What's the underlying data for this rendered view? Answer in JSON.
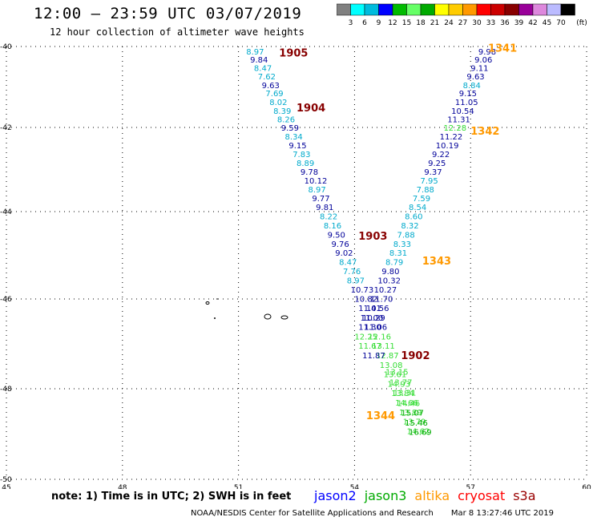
{
  "header": {
    "title": "12:00 – 23:59 UTC 03/07/2019",
    "subtitle": "12 hour collection of altimeter wave heights"
  },
  "colorbar": {
    "unit": "(ft)",
    "labels": [
      "3",
      "6",
      "9",
      "12",
      "15",
      "18",
      "21",
      "24",
      "27",
      "30",
      "33",
      "36",
      "39",
      "42",
      "45",
      "70"
    ],
    "colors": [
      "#808080",
      "#00ffff",
      "#00bbdd",
      "#0000ff",
      "#00bb00",
      "#66ff66",
      "#00aa00",
      "#ffff00",
      "#ffcc00",
      "#ff9900",
      "#ff0000",
      "#cc0000",
      "#880000",
      "#990099",
      "#dd88dd",
      "#bbbbff",
      "#000000"
    ]
  },
  "axes": {
    "lat_labels": [
      "-40",
      "-42",
      "-44",
      "-46",
      "-48",
      "-50"
    ],
    "lon_labels": [
      "45",
      "48",
      "51",
      "54",
      "57",
      "60"
    ]
  },
  "pass_colors": {
    "lightblue": "#00aacc",
    "darkblue": "#000099",
    "lightgreen": "#33dd33",
    "green": "#00aa00"
  },
  "tracks": [
    {
      "lon": 51.2,
      "lat": -40.12,
      "text": "8.97",
      "c": "lightblue"
    },
    {
      "lon": 51.3,
      "lat": -40.32,
      "text": "9.84",
      "c": "darkblue"
    },
    {
      "lon": 51.4,
      "lat": -40.52,
      "text": "8.47",
      "c": "lightblue"
    },
    {
      "lon": 51.5,
      "lat": -40.73,
      "text": "7.62",
      "c": "lightblue"
    },
    {
      "lon": 51.6,
      "lat": -40.95,
      "text": "9.63",
      "c": "darkblue"
    },
    {
      "lon": 51.7,
      "lat": -41.15,
      "text": "7.69",
      "c": "lightblue"
    },
    {
      "lon": 51.8,
      "lat": -41.37,
      "text": "8.02",
      "c": "lightblue"
    },
    {
      "lon": 51.9,
      "lat": -41.58,
      "text": "8.39",
      "c": "lightblue"
    },
    {
      "lon": 52.0,
      "lat": -41.79,
      "text": "8.26",
      "c": "lightblue"
    },
    {
      "lon": 52.1,
      "lat": -42.0,
      "text": "9.59",
      "c": "darkblue"
    },
    {
      "lon": 52.2,
      "lat": -42.21,
      "text": "8.34",
      "c": "lightblue"
    },
    {
      "lon": 52.3,
      "lat": -42.42,
      "text": "9.15",
      "c": "darkblue"
    },
    {
      "lon": 52.4,
      "lat": -42.63,
      "text": "7.83",
      "c": "lightblue"
    },
    {
      "lon": 52.5,
      "lat": -42.84,
      "text": "8.89",
      "c": "lightblue"
    },
    {
      "lon": 52.6,
      "lat": -43.05,
      "text": "9.78",
      "c": "darkblue"
    },
    {
      "lon": 52.7,
      "lat": -43.26,
      "text": "10.12",
      "c": "darkblue"
    },
    {
      "lon": 52.8,
      "lat": -43.47,
      "text": "8.97",
      "c": "lightblue"
    },
    {
      "lon": 52.9,
      "lat": -43.68,
      "text": "9.77",
      "c": "darkblue"
    },
    {
      "lon": 53.0,
      "lat": -43.89,
      "text": "9.81",
      "c": "darkblue"
    },
    {
      "lon": 53.1,
      "lat": -44.1,
      "text": "8.22",
      "c": "lightblue"
    },
    {
      "lon": 53.2,
      "lat": -44.31,
      "text": "8.16",
      "c": "lightblue"
    },
    {
      "lon": 53.3,
      "lat": -44.52,
      "text": "9.50",
      "c": "darkblue"
    },
    {
      "lon": 53.4,
      "lat": -44.73,
      "text": "9.76",
      "c": "darkblue"
    },
    {
      "lon": 53.5,
      "lat": -44.94,
      "text": "9.02",
      "c": "darkblue"
    },
    {
      "lon": 53.6,
      "lat": -45.15,
      "text": "8.47",
      "c": "lightblue"
    },
    {
      "lon": 53.7,
      "lat": -45.36,
      "text": "7.76",
      "c": "lightblue"
    },
    {
      "lon": 53.8,
      "lat": -45.57,
      "text": "8.97",
      "c": "lightblue"
    },
    {
      "lon": 53.9,
      "lat": -45.78,
      "text": "10.73",
      "c": "darkblue"
    },
    {
      "lon": 54.0,
      "lat": -45.99,
      "text": "10.82",
      "c": "darkblue"
    },
    {
      "lon": 54.1,
      "lat": -46.2,
      "text": "11.41",
      "c": "darkblue"
    },
    {
      "lon": 54.15,
      "lat": -46.41,
      "text": "11.00",
      "c": "darkblue"
    },
    {
      "lon": 54.25,
      "lat": -46.62,
      "text": "11.06",
      "c": "darkblue"
    },
    {
      "lon": 54.35,
      "lat": -46.83,
      "text": "12.16",
      "c": "lightgreen"
    },
    {
      "lon": 54.45,
      "lat": -47.04,
      "text": "13.11",
      "c": "lightgreen"
    },
    {
      "lon": 54.55,
      "lat": -47.25,
      "text": "12.87",
      "c": "lightgreen"
    },
    {
      "lon": 54.65,
      "lat": -47.46,
      "text": "13.08",
      "c": "lightgreen"
    },
    {
      "lon": 54.75,
      "lat": -47.67,
      "text": "13.61",
      "c": "lightgreen"
    },
    {
      "lon": 54.85,
      "lat": -47.88,
      "text": "14.93",
      "c": "lightgreen"
    },
    {
      "lon": 54.95,
      "lat": -48.09,
      "text": "13.84",
      "c": "lightgreen"
    },
    {
      "lon": 55.05,
      "lat": -48.3,
      "text": "14.66",
      "c": "lightgreen"
    },
    {
      "lon": 55.15,
      "lat": -48.51,
      "text": "13.89",
      "c": "lightgreen"
    },
    {
      "lon": 55.25,
      "lat": -48.72,
      "text": "13.79",
      "c": "lightgreen"
    },
    {
      "lon": 55.35,
      "lat": -48.93,
      "text": "14.62",
      "c": "lightgreen"
    },
    {
      "lon": 57.2,
      "lat": -40.12,
      "text": "9.98",
      "c": "darkblue"
    },
    {
      "lon": 57.1,
      "lat": -40.32,
      "text": "9.06",
      "c": "darkblue"
    },
    {
      "lon": 57.0,
      "lat": -40.52,
      "text": "9.11",
      "c": "darkblue"
    },
    {
      "lon": 56.9,
      "lat": -40.73,
      "text": "9.63",
      "c": "darkblue"
    },
    {
      "lon": 56.8,
      "lat": -40.95,
      "text": "8.84",
      "c": "lightblue"
    },
    {
      "lon": 56.7,
      "lat": -41.15,
      "text": "9.15",
      "c": "darkblue"
    },
    {
      "lon": 56.6,
      "lat": -41.37,
      "text": "11.05",
      "c": "darkblue"
    },
    {
      "lon": 56.5,
      "lat": -41.58,
      "text": "10.54",
      "c": "darkblue"
    },
    {
      "lon": 56.4,
      "lat": -41.79,
      "text": "11.31",
      "c": "darkblue"
    },
    {
      "lon": 56.3,
      "lat": -42.0,
      "text": "12.28",
      "c": "lightgreen"
    },
    {
      "lon": 56.2,
      "lat": -42.21,
      "text": "11.22",
      "c": "darkblue"
    },
    {
      "lon": 56.1,
      "lat": -42.42,
      "text": "10.19",
      "c": "darkblue"
    },
    {
      "lon": 56.0,
      "lat": -42.63,
      "text": "9.22",
      "c": "darkblue"
    },
    {
      "lon": 55.9,
      "lat": -42.84,
      "text": "9.25",
      "c": "darkblue"
    },
    {
      "lon": 55.8,
      "lat": -43.05,
      "text": "9.37",
      "c": "darkblue"
    },
    {
      "lon": 55.7,
      "lat": -43.26,
      "text": "7.95",
      "c": "lightblue"
    },
    {
      "lon": 55.6,
      "lat": -43.47,
      "text": "7.88",
      "c": "lightblue"
    },
    {
      "lon": 55.5,
      "lat": -43.68,
      "text": "7.59",
      "c": "lightblue"
    },
    {
      "lon": 55.4,
      "lat": -43.89,
      "text": "8.54",
      "c": "lightblue"
    },
    {
      "lon": 55.3,
      "lat": -44.1,
      "text": "8.60",
      "c": "lightblue"
    },
    {
      "lon": 55.2,
      "lat": -44.31,
      "text": "8.32",
      "c": "lightblue"
    },
    {
      "lon": 55.1,
      "lat": -44.52,
      "text": "7.88",
      "c": "lightblue"
    },
    {
      "lon": 55.0,
      "lat": -44.73,
      "text": "8.33",
      "c": "lightblue"
    },
    {
      "lon": 54.9,
      "lat": -44.94,
      "text": "8.31",
      "c": "lightblue"
    },
    {
      "lon": 54.8,
      "lat": -45.15,
      "text": "8.79",
      "c": "lightblue"
    },
    {
      "lon": 54.7,
      "lat": -45.36,
      "text": "9.80",
      "c": "darkblue"
    },
    {
      "lon": 54.6,
      "lat": -45.57,
      "text": "10.32",
      "c": "darkblue"
    },
    {
      "lon": 54.5,
      "lat": -45.78,
      "text": "10.27",
      "c": "darkblue"
    },
    {
      "lon": 54.4,
      "lat": -45.99,
      "text": "11.70",
      "c": "darkblue"
    },
    {
      "lon": 54.3,
      "lat": -46.2,
      "text": "10.56",
      "c": "darkblue"
    },
    {
      "lon": 54.2,
      "lat": -46.41,
      "text": "10.29",
      "c": "darkblue"
    },
    {
      "lon": 54.1,
      "lat": -46.62,
      "text": "11.30",
      "c": "darkblue"
    },
    {
      "lon": 54.0,
      "lat": -46.83,
      "text": "12.25",
      "c": "lightgreen"
    },
    {
      "lon": 54.1,
      "lat": -47.04,
      "text": "11.67",
      "c": "lightgreen"
    },
    {
      "lon": 54.2,
      "lat": -47.25,
      "text": "11.87",
      "c": "darkblue"
    },
    {
      "lon": 54.8,
      "lat": -47.62,
      "text": "13.15",
      "c": "lightgreen"
    },
    {
      "lon": 54.9,
      "lat": -47.85,
      "text": "13.77",
      "c": "lightgreen"
    },
    {
      "lon": 55.0,
      "lat": -48.08,
      "text": "13.31",
      "c": "lightgreen"
    },
    {
      "lon": 55.1,
      "lat": -48.31,
      "text": "14.46",
      "c": "lightgreen"
    },
    {
      "lon": 55.2,
      "lat": -48.52,
      "text": "15.07",
      "c": "green"
    },
    {
      "lon": 55.3,
      "lat": -48.74,
      "text": "15.46",
      "c": "green"
    },
    {
      "lon": 55.4,
      "lat": -48.95,
      "text": "16.69",
      "c": "green"
    }
  ],
  "pass_labels": [
    {
      "lon": 52.05,
      "lat": -40.15,
      "text": "1905",
      "color": "#880000"
    },
    {
      "lon": 52.5,
      "lat": -41.5,
      "text": "1904",
      "color": "#880000"
    },
    {
      "lon": 54.1,
      "lat": -44.55,
      "text": "1903",
      "color": "#880000"
    },
    {
      "lon": 55.2,
      "lat": -47.25,
      "text": "1902",
      "color": "#880000"
    },
    {
      "lon": 57.45,
      "lat": -40.03,
      "text": "1341",
      "color": "#ff9900"
    },
    {
      "lon": 57.0,
      "lat": -42.08,
      "text": "1342",
      "color": "#ff9900"
    },
    {
      "lon": 55.75,
      "lat": -45.12,
      "text": "1343",
      "color": "#ff9900"
    },
    {
      "lon": 54.3,
      "lat": -48.58,
      "text": "1344",
      "color": "#ff9900"
    }
  ],
  "note": "note: 1) Time is in UTC; 2) SWH is in feet",
  "legend": [
    {
      "text": "jason2",
      "color": "#0000ff"
    },
    {
      "text": "jason3",
      "color": "#00aa00"
    },
    {
      "text": "altika",
      "color": "#ff9900"
    },
    {
      "text": "cryosat",
      "color": "#ff0000"
    },
    {
      "text": "s3a",
      "color": "#990000"
    }
  ],
  "footer": {
    "credit": "NOAA/NESDIS Center for Satellite Applications and Research",
    "timestamp": "Mar  8 13:27:46 UTC 2019"
  }
}
